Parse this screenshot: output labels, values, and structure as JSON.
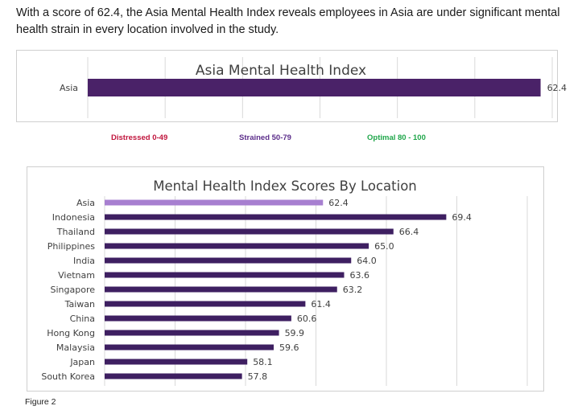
{
  "intro_text": "With a score of 62.4, the Asia Mental Health Index reveals employees in Asia are under significant mental health strain in every location involved in the study.",
  "legend": {
    "distressed": "Distressed 0-49",
    "strained": "Strained 50-79",
    "optimal": "Optimal 80 - 100"
  },
  "caption": "Figure 2",
  "colors": {
    "asia_index_bar": "#4a2268",
    "asia_location_bar": "#a77fd0",
    "location_bar": "#3e1f61"
  },
  "chart_data": [
    {
      "type": "bar",
      "orientation": "horizontal",
      "title": "Asia Mental Health Index",
      "categories": [
        "Asia"
      ],
      "values": [
        62.4
      ],
      "value_labels": [
        "62.4"
      ],
      "xlim": [
        0,
        64
      ],
      "grid": true
    },
    {
      "type": "bar",
      "orientation": "horizontal",
      "title": "Mental Health Index Scores By Location",
      "categories": [
        "Asia",
        "Indonesia",
        "Thailand",
        "Philippines",
        "India",
        "Vietnam",
        "Singapore",
        "Taiwan",
        "China",
        "Hong Kong",
        "Malaysia",
        "Japan",
        "South Korea"
      ],
      "values": [
        62.4,
        69.4,
        66.4,
        65.0,
        64.0,
        63.6,
        63.2,
        61.4,
        60.6,
        59.9,
        59.6,
        58.1,
        57.8
      ],
      "value_labels": [
        "62.4",
        "69.4",
        "66.4",
        "65.0",
        "64.0",
        "63.6",
        "63.2",
        "61.4",
        "60.6",
        "59.9",
        "59.6",
        "58.1",
        "57.8"
      ],
      "xlim": [
        50,
        74
      ],
      "grid": true
    }
  ]
}
